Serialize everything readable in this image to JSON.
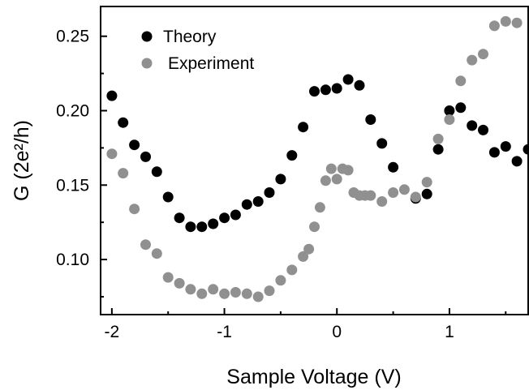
{
  "chart_data": {
    "type": "scatter",
    "xlabel": "Sample Voltage (V)",
    "ylabel": "G (2e²/h)",
    "xlim": [
      -2.1,
      1.7
    ],
    "ylim": [
      0.063,
      0.27
    ],
    "x_ticks": [
      -2,
      -1,
      0,
      1
    ],
    "x_tick_labels": [
      "-2",
      "-1",
      "0",
      "1"
    ],
    "y_ticks": [
      0.1,
      0.15,
      0.2,
      0.25
    ],
    "y_tick_labels": [
      "0.10",
      "0.15",
      "0.20",
      "0.25"
    ],
    "legend_position": "top-left",
    "grid": false,
    "series": [
      {
        "name": "Theory",
        "color": "#000000",
        "points": [
          [
            -2.0,
            0.21
          ],
          [
            -1.9,
            0.192
          ],
          [
            -1.8,
            0.177
          ],
          [
            -1.7,
            0.169
          ],
          [
            -1.6,
            0.159
          ],
          [
            -1.5,
            0.142
          ],
          [
            -1.4,
            0.128
          ],
          [
            -1.3,
            0.122
          ],
          [
            -1.2,
            0.122
          ],
          [
            -1.1,
            0.124
          ],
          [
            -1.0,
            0.128
          ],
          [
            -0.9,
            0.13
          ],
          [
            -0.8,
            0.137
          ],
          [
            -0.7,
            0.139
          ],
          [
            -0.6,
            0.145
          ],
          [
            -0.5,
            0.154
          ],
          [
            -0.4,
            0.17
          ],
          [
            -0.3,
            0.189
          ],
          [
            -0.2,
            0.213
          ],
          [
            -0.1,
            0.214
          ],
          [
            0.0,
            0.215
          ],
          [
            0.1,
            0.221
          ],
          [
            0.2,
            0.217
          ],
          [
            0.3,
            0.194
          ],
          [
            0.4,
            0.178
          ],
          [
            0.5,
            0.162
          ],
          [
            0.7,
            0.141
          ],
          [
            0.8,
            0.144
          ],
          [
            0.9,
            0.174
          ],
          [
            1.0,
            0.2
          ],
          [
            1.1,
            0.202
          ],
          [
            1.2,
            0.19
          ],
          [
            1.3,
            0.187
          ],
          [
            1.4,
            0.172
          ],
          [
            1.5,
            0.176
          ],
          [
            1.6,
            0.166
          ],
          [
            1.7,
            0.174
          ]
        ]
      },
      {
        "name": "Experiment",
        "color": "#909090",
        "points": [
          [
            -2.0,
            0.171
          ],
          [
            -1.9,
            0.158
          ],
          [
            -1.8,
            0.134
          ],
          [
            -1.7,
            0.11
          ],
          [
            -1.6,
            0.104
          ],
          [
            -1.5,
            0.088
          ],
          [
            -1.4,
            0.084
          ],
          [
            -1.3,
            0.08
          ],
          [
            -1.2,
            0.077
          ],
          [
            -1.1,
            0.08
          ],
          [
            -1.0,
            0.077
          ],
          [
            -0.9,
            0.078
          ],
          [
            -0.8,
            0.077
          ],
          [
            -0.7,
            0.075
          ],
          [
            -0.6,
            0.079
          ],
          [
            -0.5,
            0.086
          ],
          [
            -0.4,
            0.093
          ],
          [
            -0.3,
            0.102
          ],
          [
            -0.25,
            0.107
          ],
          [
            -0.2,
            0.122
          ],
          [
            -0.15,
            0.135
          ],
          [
            -0.1,
            0.153
          ],
          [
            -0.05,
            0.161
          ],
          [
            0.0,
            0.154
          ],
          [
            0.05,
            0.161
          ],
          [
            0.1,
            0.16
          ],
          [
            0.15,
            0.145
          ],
          [
            0.2,
            0.143
          ],
          [
            0.25,
            0.143
          ],
          [
            0.3,
            0.143
          ],
          [
            0.4,
            0.139
          ],
          [
            0.5,
            0.145
          ],
          [
            0.6,
            0.147
          ],
          [
            0.7,
            0.142
          ],
          [
            0.8,
            0.152
          ],
          [
            0.9,
            0.181
          ],
          [
            1.0,
            0.194
          ],
          [
            1.1,
            0.22
          ],
          [
            1.2,
            0.234
          ],
          [
            1.3,
            0.238
          ],
          [
            1.4,
            0.257
          ],
          [
            1.5,
            0.26
          ],
          [
            1.6,
            0.259
          ]
        ]
      }
    ]
  }
}
